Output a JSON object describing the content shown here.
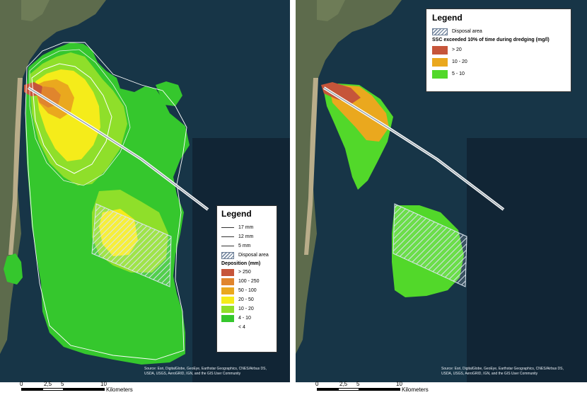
{
  "left_map": {
    "legend": {
      "title": "Legend",
      "contours": [
        {
          "label": "17 mm"
        },
        {
          "label": "12 mm"
        },
        {
          "label": "5 mm"
        }
      ],
      "disposal_label": "Disposal area",
      "deposition_title": "Deposition (mm)",
      "classes": [
        {
          "label": "> 250",
          "color": "#c6553a"
        },
        {
          "label": "100 - 250",
          "color": "#e0852d"
        },
        {
          "label": "50 - 100",
          "color": "#eaa81e"
        },
        {
          "label": "20 - 50",
          "color": "#f5ec1a"
        },
        {
          "label": "10 - 20",
          "color": "#8fdf2a"
        },
        {
          "label": "4 - 10",
          "color": "#35c72d"
        },
        {
          "label": "< 4",
          "color": ""
        }
      ]
    },
    "credit_line1": "Source: Esri, DigitalGlobe, GeoEye, Earthstar Geographics, CNES/Airbus DS,",
    "credit_line2": "USDA, USGS, AeroGRID, IGN, and the GIS User Community",
    "scale": {
      "ticks": [
        "0",
        "2,5",
        "5",
        "10"
      ],
      "unit": "Kilometers"
    }
  },
  "right_map": {
    "legend": {
      "title": "Legend",
      "disposal_label": "Disposal area",
      "ssc_title": "SSC exceeded 10% of time during dredging (mg/l)",
      "classes": [
        {
          "label": "> 20",
          "color": "#c6553a"
        },
        {
          "label": "10 - 20",
          "color": "#eaa81e"
        },
        {
          "label": "5 - 10",
          "color": "#52d82a"
        }
      ]
    },
    "credit_line1": "Source: Esri, DigitalGlobe, GeoEye, Earthstar Geographics, CNES/Airbus DS,",
    "credit_line2": "USDA, USGS, AeroGRID, IGN, and the GIS User Community",
    "scale": {
      "ticks": [
        "0",
        "2,5",
        "5",
        "10"
      ],
      "unit": "Kilometers"
    }
  },
  "colors": {
    "sea": "#173547",
    "deep_sea": "#112535",
    "land": "#5d6b4c",
    "beach": "#b9ad8a"
  }
}
